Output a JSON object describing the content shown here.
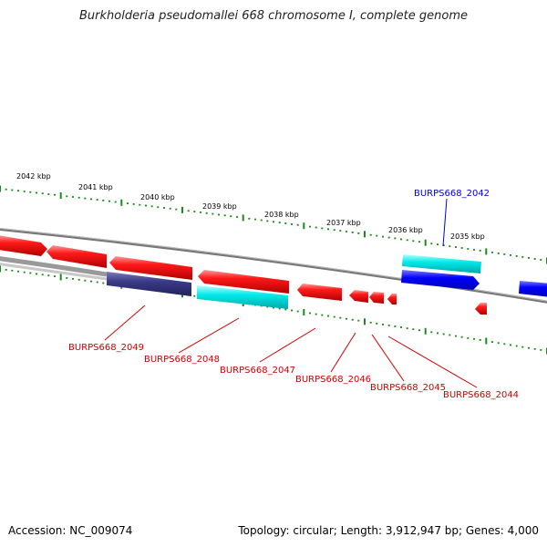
{
  "title": "Burkholderia pseudomallei 668 chromosome I, complete genome",
  "footer": {
    "accession": "Accession: NC_009074",
    "summary": "Topology: circular; Length: 3,912,947 bp; Genes: 4,000"
  },
  "kbp_labels": [
    "2042 kbp",
    "2041 kbp",
    "2040 kbp",
    "2039 kbp",
    "2038 kbp",
    "2037 kbp",
    "2036 kbp",
    "2035 kbp"
  ],
  "gene_labels": [
    {
      "text": "BURPS668_2042",
      "color": "#0000cc"
    },
    {
      "text": "BURPS668_2049",
      "color": "#cc0000"
    },
    {
      "text": "BURPS668_2048",
      "color": "#cc0000"
    },
    {
      "text": "BURPS668_2047",
      "color": "#cc0000"
    },
    {
      "text": "BURPS668_2046",
      "color": "#cc0000"
    },
    {
      "text": "BURPS668_2045",
      "color": "#cc0000"
    },
    {
      "text": "BURPS668_2044",
      "color": "#cc0000"
    }
  ],
  "colors": {
    "forward_strand": "#ff0000",
    "reverse_strand_blue": "#0000ff",
    "cyan_feature": "#00e5e5",
    "navy_feature": "#3a3a88",
    "backbone": "#888888",
    "tick": "#1a8a1a"
  }
}
